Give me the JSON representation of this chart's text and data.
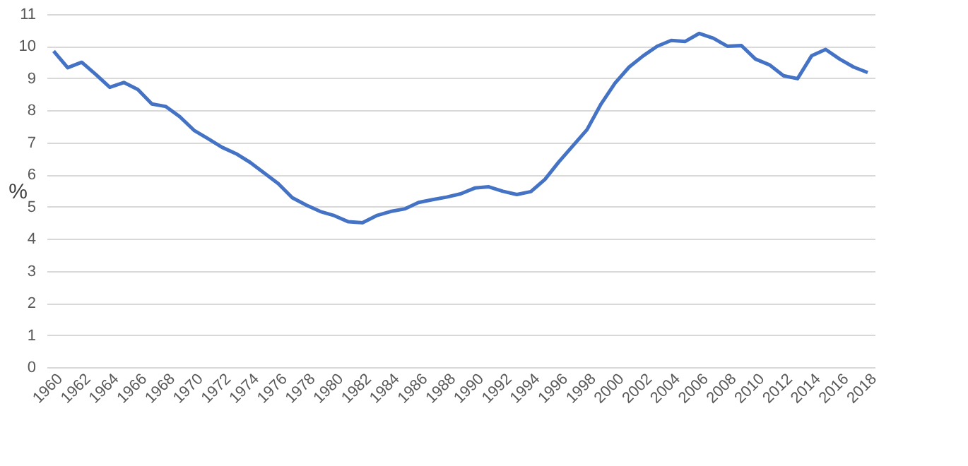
{
  "chart_data": {
    "type": "line",
    "ylabel": "%",
    "categories": [
      "1960",
      null,
      "1962",
      null,
      "1964",
      null,
      "1966",
      null,
      "1968",
      null,
      "1970",
      null,
      "1972",
      null,
      "1974",
      null,
      "1976",
      null,
      "1978",
      null,
      "1980",
      null,
      "1982",
      null,
      "1984",
      null,
      "1986",
      null,
      "1988",
      null,
      "1990",
      null,
      "1992",
      null,
      "1994",
      null,
      "1996",
      null,
      "1998",
      null,
      "2000",
      null,
      "2002",
      null,
      "2004",
      null,
      "2006",
      null,
      "2008",
      null,
      "2010",
      null,
      "2012",
      null,
      "2014",
      null,
      "2016",
      null,
      "2018"
    ],
    "series": [
      {
        "color": "#4472c4",
        "values": [
          9.85,
          9.33,
          9.5,
          9.12,
          8.72,
          8.87,
          8.65,
          8.2,
          8.12,
          7.8,
          7.38,
          7.12,
          6.85,
          6.65,
          6.38,
          6.05,
          5.72,
          5.28,
          5.05,
          4.85,
          4.72,
          4.53,
          4.5,
          4.72,
          4.85,
          4.93,
          5.13,
          5.22,
          5.3,
          5.4,
          5.58,
          5.62,
          5.48,
          5.38,
          5.47,
          5.85,
          6.4,
          6.9,
          7.4,
          8.2,
          8.85,
          9.35,
          9.7,
          10.0,
          10.18,
          10.15,
          10.4,
          10.25,
          10.0,
          10.02,
          9.6,
          9.42,
          9.08,
          8.99,
          9.7,
          9.9,
          9.6,
          9.35,
          9.18
        ]
      }
    ],
    "ylim": [
      0,
      11
    ],
    "yticks": [
      0,
      1,
      2,
      3,
      4,
      5,
      6,
      7,
      8,
      9,
      10,
      11
    ],
    "grid": "y",
    "legend": false,
    "marker": "none",
    "line_style": "solid"
  }
}
